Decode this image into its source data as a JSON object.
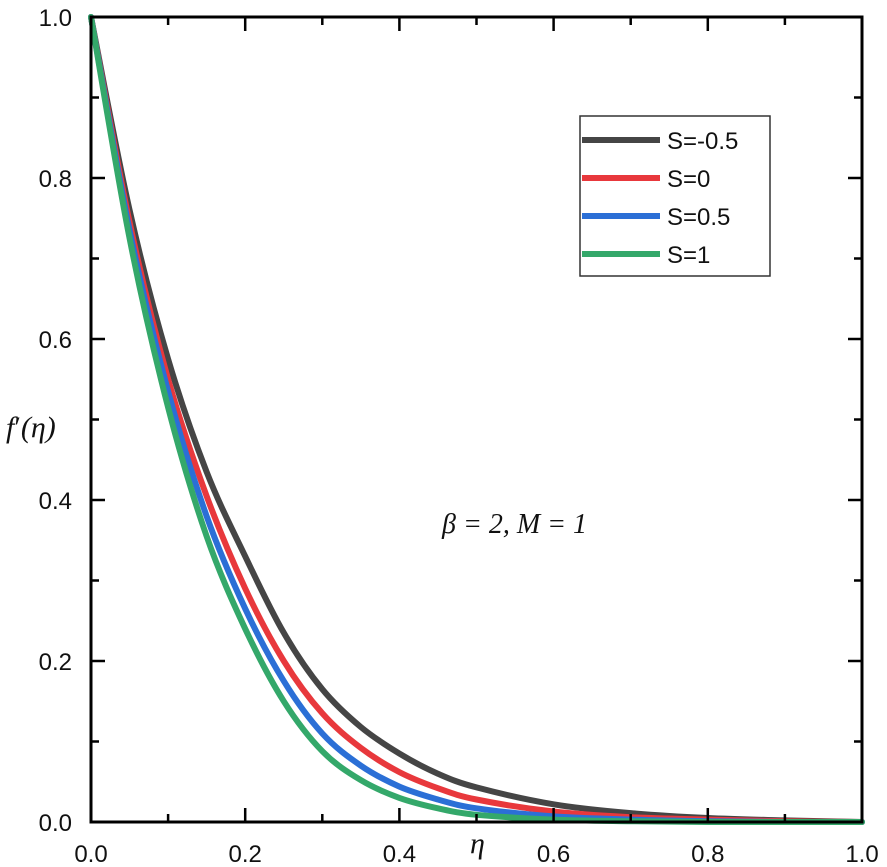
{
  "chart_data": {
    "type": "line",
    "title": "",
    "xlabel": "η",
    "ylabel": "f′(η)",
    "xlim": [
      0.0,
      1.0
    ],
    "ylim": [
      0.0,
      1.0
    ],
    "grid": false,
    "legend_position": "upper right",
    "x_ticks": [
      "0.0",
      "0.2",
      "0.4",
      "0.6",
      "0.8",
      "1.0"
    ],
    "y_ticks": [
      "0.0",
      "0.2",
      "0.4",
      "0.6",
      "0.8",
      "1.0"
    ],
    "annotation": "β = 2, M = 1",
    "x": [
      0.0,
      0.05,
      0.1,
      0.15,
      0.2,
      0.25,
      0.3,
      0.35,
      0.4,
      0.45,
      0.5,
      0.6,
      0.7,
      0.8,
      0.9,
      1.0
    ],
    "series": [
      {
        "name": "S=-0.5",
        "color": "#454545",
        "values": [
          1.0,
          0.76,
          0.575,
          0.435,
          0.33,
          0.235,
          0.165,
          0.118,
          0.085,
          0.06,
          0.043,
          0.022,
          0.011,
          0.005,
          0.002,
          0.0
        ]
      },
      {
        "name": "S=0",
        "color": "#e8383c",
        "values": [
          1.0,
          0.745,
          0.55,
          0.405,
          0.29,
          0.2,
          0.135,
          0.092,
          0.062,
          0.042,
          0.028,
          0.013,
          0.006,
          0.003,
          0.001,
          0.0
        ]
      },
      {
        "name": "S=0.5",
        "color": "#2b6fd6",
        "values": [
          1.0,
          0.735,
          0.535,
          0.38,
          0.265,
          0.175,
          0.11,
          0.07,
          0.044,
          0.028,
          0.017,
          0.007,
          0.003,
          0.001,
          0.0,
          0.0
        ]
      },
      {
        "name": "S=1",
        "color": "#34a86a",
        "values": [
          1.0,
          0.725,
          0.515,
          0.355,
          0.24,
          0.15,
          0.088,
          0.052,
          0.03,
          0.017,
          0.009,
          0.003,
          0.001,
          0.0,
          0.0,
          0.0
        ]
      }
    ]
  },
  "axes": {
    "x_label": "η",
    "y_label_main": "f",
    "y_label_prime": "′",
    "y_label_arg": "(η)"
  },
  "annotation": {
    "text": "β = 2, M = 1"
  },
  "legend": {
    "items": [
      {
        "label": "S=-0.5",
        "color": "#454545"
      },
      {
        "label": "S=0",
        "color": "#e8383c"
      },
      {
        "label": "S=0.5",
        "color": "#2b6fd6"
      },
      {
        "label": "S=1",
        "color": "#34a86a"
      }
    ]
  }
}
